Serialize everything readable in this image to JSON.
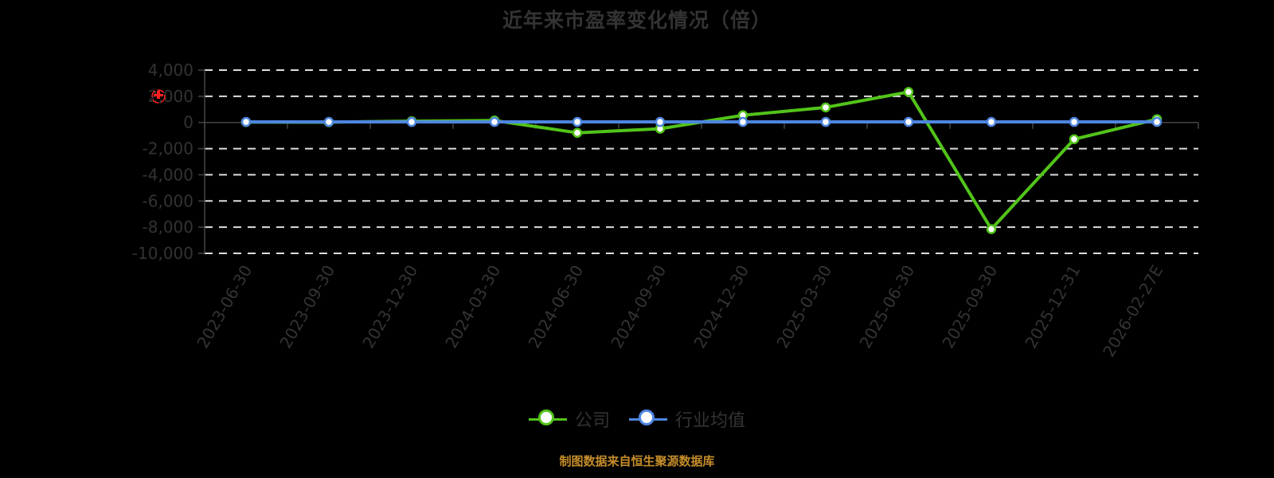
{
  "title": "近年来市盈率变化情况（倍）",
  "footer": "制图数据来自恒生聚源数据库",
  "legend": [
    {
      "label": "公司",
      "color": "#52c41a"
    },
    {
      "label": "行业均值",
      "color": "#4e86e0"
    }
  ],
  "colors": {
    "company": "#52c41a",
    "industry": "#4e86e0",
    "grid": "#dddddd",
    "axis_text": "#333333",
    "footer": "#c58d2a",
    "background": "#000000"
  },
  "chart_data": {
    "type": "line",
    "title": "近年来市盈率变化情况（倍）",
    "xlabel": "",
    "ylabel": "",
    "categories": [
      "2023-06-30",
      "2023-09-30",
      "2023-12-30",
      "2024-03-30",
      "2024-06-30",
      "2024-09-30",
      "2024-12-30",
      "2025-03-30",
      "2025-06-30",
      "2025-09-30",
      "2025-12-31",
      "2026-02-27E"
    ],
    "series": [
      {
        "name": "公司",
        "color": "#52c41a",
        "values": [
          30,
          20,
          100,
          150,
          -790,
          -480,
          550,
          1150,
          2330,
          -8150,
          -1280,
          250
        ]
      },
      {
        "name": "行业均值",
        "color": "#4e86e0",
        "values": [
          40,
          40,
          40,
          40,
          40,
          40,
          40,
          40,
          40,
          40,
          40,
          40
        ]
      }
    ],
    "yticks": [
      4000,
      2000,
      0,
      -2000,
      -4000,
      -6000,
      -8000,
      -10000
    ],
    "ytick_labels": [
      "4,000",
      "2,000",
      "0",
      "-2,000",
      "-4,000",
      "-6,000",
      "-8,000",
      "-10,000"
    ],
    "ylim": [
      -10000,
      4000
    ],
    "grid": true,
    "grid_style": "dashed",
    "legend_position": "bottom"
  }
}
